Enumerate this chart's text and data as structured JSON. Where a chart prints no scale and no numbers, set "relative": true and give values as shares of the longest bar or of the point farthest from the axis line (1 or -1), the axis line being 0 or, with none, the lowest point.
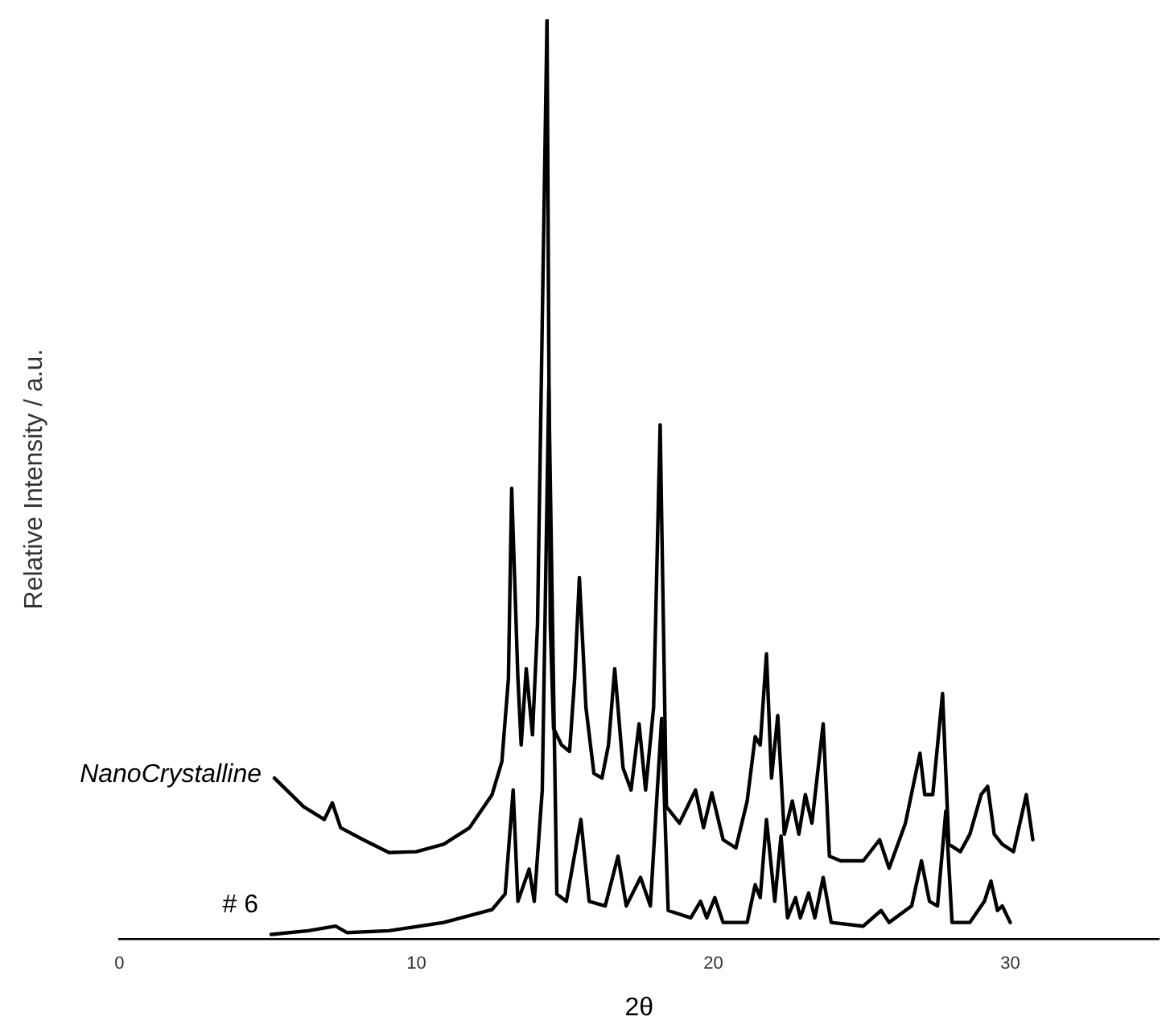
{
  "chart_data": {
    "type": "line",
    "relative": true,
    "xlabel": "2θ",
    "ylabel": "Relative Intensity / a.u.",
    "xlim": [
      0,
      35
    ],
    "xticks": [
      0,
      10,
      20,
      30
    ],
    "grid": false,
    "legend": false,
    "marker": "none",
    "line_style": "solid",
    "series": [
      {
        "name": "NanoCrystalline",
        "color": "#000000",
        "x": [
          5.22,
          6.2,
          6.9,
          7.17,
          7.45,
          8.21,
          9.08,
          10,
          10.92,
          11.79,
          12.55,
          12.88,
          13.1,
          13.21,
          13.42,
          13.53,
          13.7,
          13.91,
          14.08,
          14.4,
          14.51,
          14.62,
          14.89,
          15.16,
          15.33,
          15.49,
          15.71,
          15.98,
          16.25,
          16.47,
          16.68,
          16.96,
          17.23,
          17.5,
          17.72,
          17.99,
          18.21,
          18.42,
          18.86,
          19.4,
          19.67,
          19.95,
          20.33,
          20.76,
          21.14,
          21.41,
          21.58,
          21.79,
          21.96,
          22.17,
          22.39,
          22.66,
          22.88,
          23.1,
          23.32,
          23.7,
          23.91,
          24.29,
          25.05,
          25.6,
          25.92,
          26.47,
          26.74,
          26.96,
          27.12,
          27.39,
          27.72,
          27.93,
          28.32,
          28.64,
          29.02,
          29.24,
          29.46,
          29.73,
          30.11,
          30.54,
          30.76
        ],
        "values": [
          0.175,
          0.144,
          0.13,
          0.148,
          0.121,
          0.108,
          0.094,
          0.095,
          0.103,
          0.121,
          0.157,
          0.193,
          0.283,
          0.49,
          0.283,
          0.211,
          0.294,
          0.222,
          0.342,
          1,
          0.342,
          0.229,
          0.211,
          0.204,
          0.283,
          0.393,
          0.252,
          0.18,
          0.175,
          0.211,
          0.294,
          0.186,
          0.162,
          0.234,
          0.162,
          0.252,
          0.559,
          0.144,
          0.126,
          0.162,
          0.121,
          0.159,
          0.108,
          0.099,
          0.15,
          0.22,
          0.211,
          0.31,
          0.175,
          0.243,
          0.114,
          0.15,
          0.114,
          0.157,
          0.126,
          0.234,
          0.09,
          0.085,
          0.085,
          0.108,
          0.077,
          0.126,
          0.168,
          0.202,
          0.157,
          0.157,
          0.267,
          0.103,
          0.095,
          0.114,
          0.157,
          0.166,
          0.114,
          0.103,
          0.095,
          0.157,
          0.108
        ]
      },
      {
        "name": "# 6",
        "color": "#000000",
        "x": [
          5.11,
          6.36,
          7.28,
          7.66,
          9.08,
          10.92,
          12.55,
          12.99,
          13.26,
          13.42,
          13.8,
          13.97,
          14.24,
          14.46,
          14.73,
          15.05,
          15.54,
          15.82,
          16.36,
          16.79,
          17.07,
          17.55,
          17.88,
          18.26,
          18.48,
          19.24,
          19.57,
          19.78,
          20.05,
          20.33,
          21.14,
          21.41,
          21.58,
          21.79,
          22.07,
          22.28,
          22.5,
          22.77,
          22.93,
          23.21,
          23.42,
          23.7,
          23.97,
          25.05,
          25.65,
          25.92,
          26.68,
          27.01,
          27.28,
          27.55,
          27.83,
          28.04,
          28.64,
          29.13,
          29.35,
          29.57,
          29.73,
          30
        ],
        "values": [
          0.005,
          0.009,
          0.014,
          0.007,
          0.009,
          0.018,
          0.032,
          0.049,
          0.162,
          0.041,
          0.076,
          0.041,
          0.162,
          0.6,
          0.049,
          0.041,
          0.13,
          0.041,
          0.036,
          0.09,
          0.036,
          0.067,
          0.036,
          0.24,
          0.031,
          0.023,
          0.041,
          0.023,
          0.045,
          0.018,
          0.018,
          0.059,
          0.045,
          0.13,
          0.041,
          0.112,
          0.023,
          0.045,
          0.023,
          0.05,
          0.023,
          0.067,
          0.018,
          0.014,
          0.031,
          0.018,
          0.036,
          0.085,
          0.041,
          0.036,
          0.139,
          0.018,
          0.018,
          0.041,
          0.063,
          0.031,
          0.036,
          0.018
        ]
      }
    ]
  }
}
